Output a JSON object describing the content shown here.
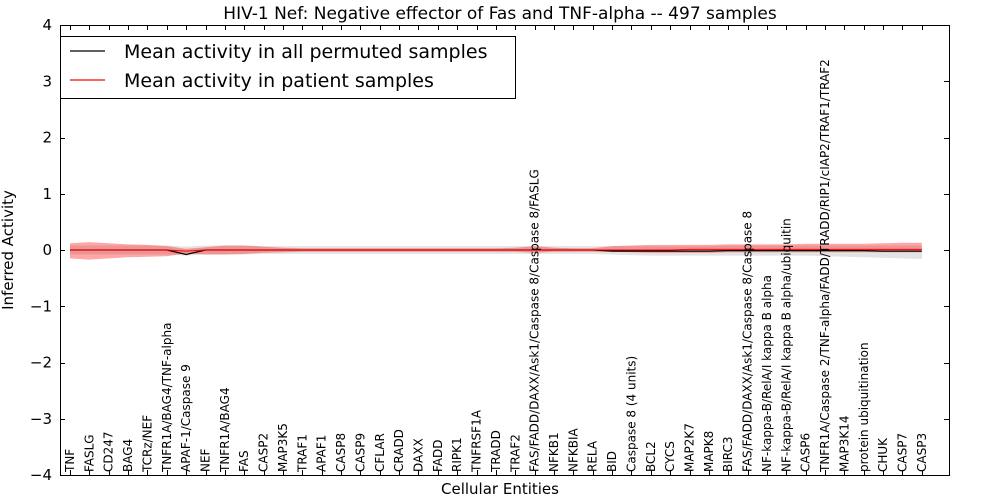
{
  "chart_data": {
    "type": "line",
    "title": "HIV-1 Nef: Negative effector of Fas and TNF-alpha -- 497 samples",
    "xlabel": "Cellular Entities",
    "ylabel": "Inferred Activity",
    "ylim": [
      -4,
      4
    ],
    "yticks": [
      -4,
      -3,
      -2,
      -1,
      0,
      1,
      2,
      3,
      4
    ],
    "ytick_labels": [
      "−4",
      "−3",
      "−2",
      "−1",
      "0",
      "1",
      "2",
      "3",
      "4"
    ],
    "legend_position": "top-left",
    "categories": [
      "TNF",
      "FASLG",
      "CD247",
      "BAG4",
      "TCRz/NEF",
      "TNFR1A/BAG4/TNF-alpha",
      "APAF-1/Caspase 9",
      "NEF",
      "TNFR1A/BAG4",
      "FAS",
      "CASP2",
      "MAP3K5",
      "TRAF1",
      "APAF1",
      "CASP8",
      "CASP9",
      "CFLAR",
      "CRADD",
      "DAXX",
      "FADD",
      "RIPK1",
      "TNFRSF1A",
      "TRADD",
      "TRAF2",
      "FAS/FADD/DAXX/Ask1/Caspase 8/Caspase 8/FASLG",
      "NFKB1",
      "NFKBIA",
      "RELA",
      "BID",
      "Caspase 8 (4 units)",
      "BCL2",
      "CYCS",
      "MAP2K7",
      "MAPK8",
      "BIRC3",
      "FAS/FADD/DAXX/Ask1/Caspase 8/Caspase 8",
      "NF-kappa-B/RelA/I kappa B alpha",
      "NF-kappa-B/RelA/I kappa B alpha/ubiquitin",
      "CASP6",
      "TNFR1A/Caspase 2/TNF-alpha/FADD/TRADD/RIP1/cIAP2/TRAF1/TRAF2",
      "MAP3K14",
      "protein ubiquitination",
      "CHUK",
      "CASP7",
      "CASP3"
    ],
    "series": [
      {
        "name": "Mean activity in all permuted samples",
        "color": "#000000",
        "values": [
          0.0,
          0.0,
          0.0,
          0.0,
          0.0,
          0.0,
          -0.08,
          0.0,
          0.0,
          0.0,
          0.0,
          0.0,
          0.0,
          0.0,
          0.0,
          0.0,
          0.0,
          0.0,
          0.0,
          0.0,
          0.0,
          0.0,
          0.0,
          0.0,
          0.0,
          0.0,
          0.0,
          0.0,
          -0.02,
          -0.02,
          -0.02,
          -0.02,
          -0.02,
          -0.02,
          -0.01,
          -0.01,
          -0.01,
          -0.01,
          -0.01,
          -0.01,
          -0.01,
          -0.01,
          -0.02,
          -0.02,
          -0.02
        ],
        "band_lower": [
          -0.08,
          -0.08,
          -0.08,
          -0.08,
          -0.08,
          -0.08,
          -0.1,
          -0.08,
          -0.08,
          -0.08,
          -0.07,
          -0.07,
          -0.07,
          -0.07,
          -0.07,
          -0.07,
          -0.07,
          -0.07,
          -0.07,
          -0.07,
          -0.07,
          -0.07,
          -0.07,
          -0.07,
          -0.07,
          -0.07,
          -0.07,
          -0.07,
          -0.08,
          -0.09,
          -0.1,
          -0.1,
          -0.1,
          -0.1,
          -0.1,
          -0.1,
          -0.1,
          -0.1,
          -0.1,
          -0.11,
          -0.12,
          -0.13,
          -0.14,
          -0.15,
          -0.16
        ],
        "band_upper": [
          0.08,
          0.08,
          0.08,
          0.08,
          0.08,
          0.08,
          0.06,
          0.08,
          0.08,
          0.08,
          0.07,
          0.07,
          0.07,
          0.07,
          0.07,
          0.07,
          0.07,
          0.07,
          0.07,
          0.07,
          0.07,
          0.07,
          0.07,
          0.07,
          0.07,
          0.07,
          0.07,
          0.07,
          0.07,
          0.07,
          0.07,
          0.07,
          0.07,
          0.07,
          0.08,
          0.08,
          0.08,
          0.08,
          0.08,
          0.08,
          0.08,
          0.08,
          0.08,
          0.08,
          0.08
        ]
      },
      {
        "name": "Mean activity in patient samples",
        "color": "#ff0000",
        "values": [
          0.0,
          0.0,
          0.0,
          0.0,
          0.0,
          0.0,
          -0.02,
          0.0,
          0.0,
          0.0,
          0.0,
          0.0,
          0.0,
          0.0,
          0.0,
          0.0,
          0.0,
          0.0,
          0.0,
          0.0,
          0.0,
          0.0,
          0.0,
          0.0,
          0.0,
          0.0,
          0.0,
          0.0,
          0.0,
          0.0,
          0.0,
          0.0,
          0.01,
          0.01,
          0.01,
          0.01,
          0.01,
          0.01,
          0.01,
          0.01,
          0.01,
          0.01,
          0.01,
          0.01,
          0.01
        ],
        "band_lower": [
          -0.15,
          -0.17,
          -0.15,
          -0.13,
          -0.12,
          -0.11,
          -0.06,
          -0.08,
          -0.08,
          -0.07,
          -0.05,
          -0.04,
          -0.03,
          -0.03,
          -0.03,
          -0.03,
          -0.03,
          -0.03,
          -0.03,
          -0.03,
          -0.03,
          -0.03,
          -0.03,
          -0.03,
          -0.05,
          -0.03,
          -0.03,
          -0.03,
          -0.03,
          -0.04,
          -0.05,
          -0.05,
          -0.05,
          -0.05,
          -0.04,
          -0.04,
          -0.04,
          -0.04,
          -0.04,
          -0.04,
          -0.04,
          -0.04,
          -0.04,
          -0.04,
          -0.04
        ],
        "band_upper": [
          0.12,
          0.14,
          0.12,
          0.1,
          0.09,
          0.07,
          0.02,
          0.05,
          0.08,
          0.08,
          0.06,
          0.04,
          0.03,
          0.03,
          0.03,
          0.03,
          0.03,
          0.03,
          0.03,
          0.03,
          0.03,
          0.03,
          0.03,
          0.04,
          0.07,
          0.04,
          0.03,
          0.03,
          0.07,
          0.08,
          0.09,
          0.09,
          0.09,
          0.09,
          0.1,
          0.1,
          0.1,
          0.1,
          0.11,
          0.11,
          0.11,
          0.11,
          0.12,
          0.13,
          0.13
        ]
      }
    ]
  }
}
